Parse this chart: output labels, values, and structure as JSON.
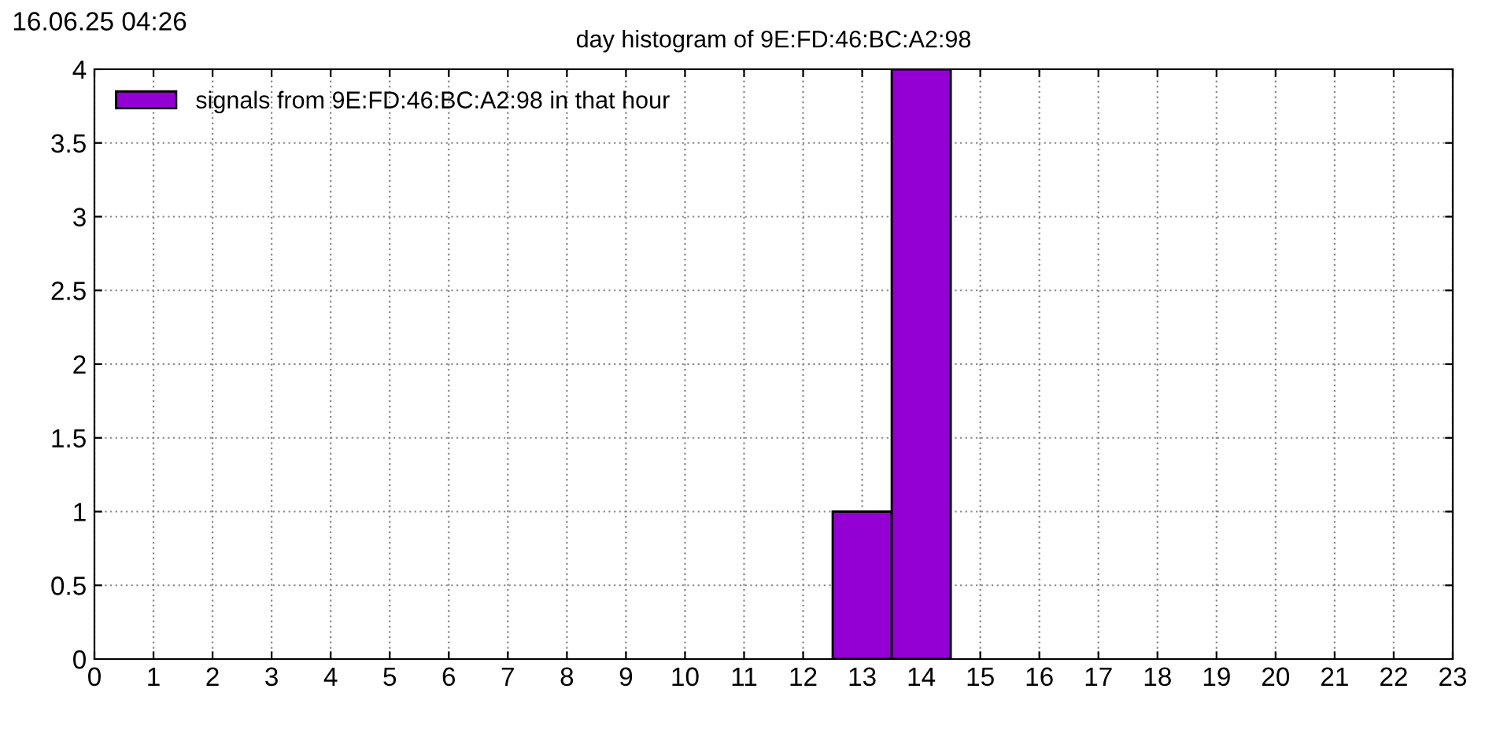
{
  "chart_data": {
    "type": "histogram",
    "title": "day histogram of 9E:FD:46:BC:A2:98",
    "annotations": [
      "16.06.25 04:26"
    ],
    "bins": [
      12.5,
      13.5,
      14.5
    ],
    "series": [
      {
        "name": "signals from 9E:FD:46:BC:A2:98 in that hour",
        "color": "#9400d3",
        "values": [
          1,
          4
        ]
      }
    ],
    "xlim": [
      0,
      23
    ],
    "xticks": [
      0,
      1,
      2,
      3,
      4,
      5,
      6,
      7,
      8,
      9,
      10,
      11,
      12,
      13,
      14,
      15,
      16,
      17,
      18,
      19,
      20,
      21,
      22,
      23
    ],
    "ylim": [
      0,
      4
    ],
    "yticks": [
      0,
      0.5,
      1,
      1.5,
      2,
      2.5,
      3,
      3.5,
      4
    ],
    "grid": true,
    "legend": "top left"
  }
}
